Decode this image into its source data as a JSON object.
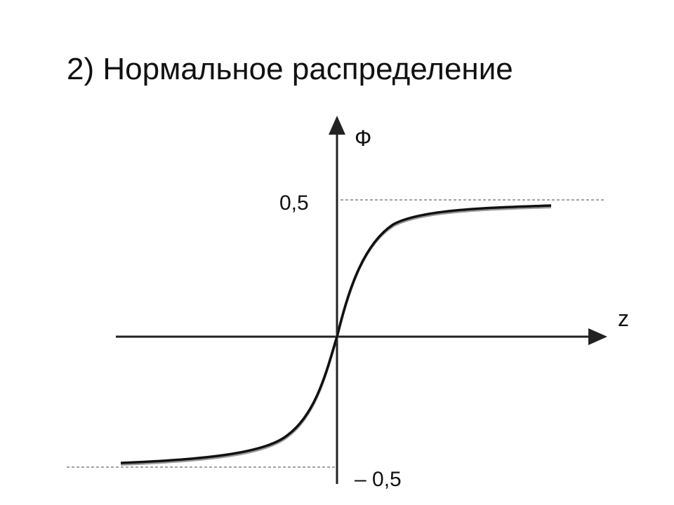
{
  "header": {
    "title": "2) Нормальное распределение"
  },
  "diagram": {
    "y_axis_label": "Ф",
    "x_axis_label": "z",
    "upper_level_label": "0,5",
    "lower_level_label": "– 0,5"
  }
}
